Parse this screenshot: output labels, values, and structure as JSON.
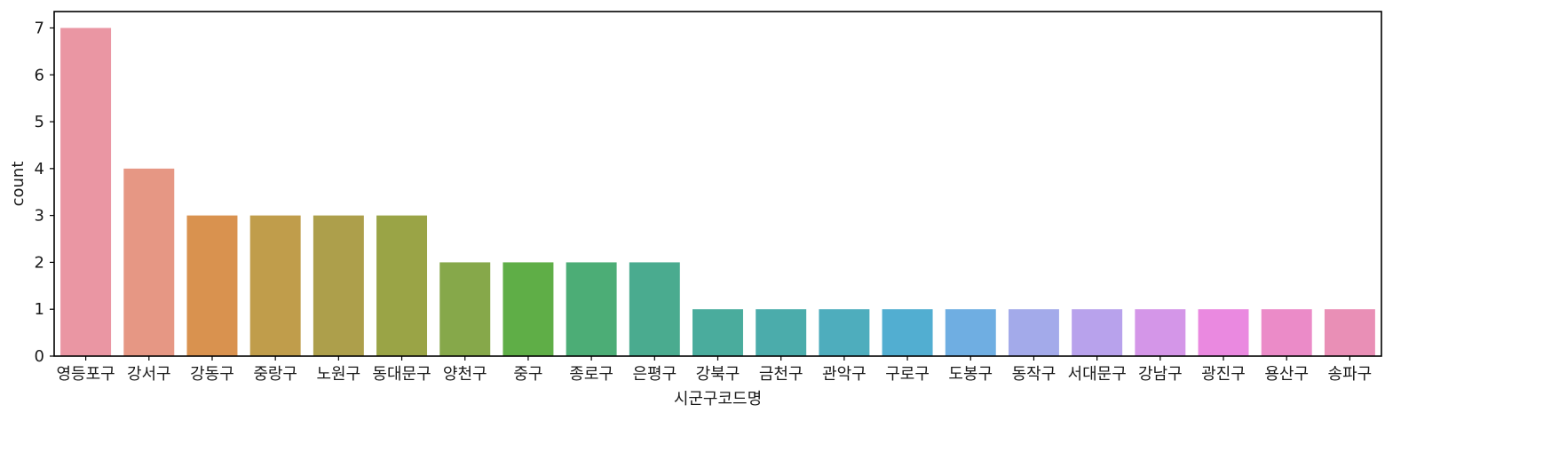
{
  "chart_data": {
    "type": "bar",
    "title": "",
    "xlabel": "시군구코드명",
    "ylabel": "count",
    "ylim": [
      0,
      7.35
    ],
    "yticks": [
      0,
      1,
      2,
      3,
      4,
      5,
      6,
      7
    ],
    "grid": false,
    "categories": [
      "영등포구",
      "강서구",
      "강동구",
      "중랑구",
      "노원구",
      "동대문구",
      "양천구",
      "중구",
      "종로구",
      "은평구",
      "강북구",
      "금천구",
      "관악구",
      "구로구",
      "도봉구",
      "동작구",
      "서대문구",
      "강남구",
      "광진구",
      "용산구",
      "송파구"
    ],
    "values": [
      7,
      4,
      3,
      3,
      3,
      3,
      2,
      2,
      2,
      2,
      1,
      1,
      1,
      1,
      1,
      1,
      1,
      1,
      1,
      1,
      1
    ],
    "colors": [
      "#ea96a3",
      "#e69784",
      "#d9924f",
      "#c09d4b",
      "#ad9f4b",
      "#9aa446",
      "#86a84a",
      "#5fae47",
      "#4cad76",
      "#4aab8f",
      "#4aac9d",
      "#4bacab",
      "#4eadbd",
      "#52aed1",
      "#6faee2",
      "#a3aaea",
      "#b8a2ec",
      "#d496e8",
      "#ea89e0",
      "#eb8bc8",
      "#e98fb6"
    ]
  }
}
